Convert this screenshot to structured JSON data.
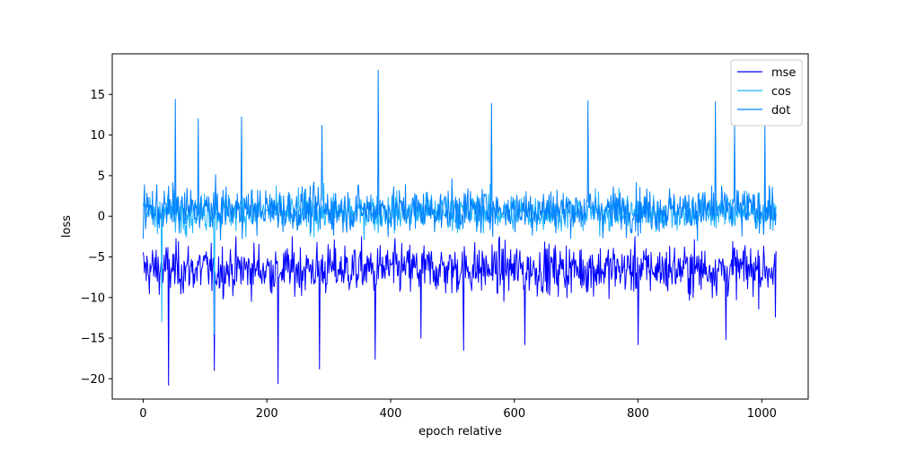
{
  "chart_data": {
    "type": "line",
    "title": "",
    "xlabel": "epoch relative",
    "ylabel": "loss",
    "xlim": [
      -50,
      1075
    ],
    "ylim": [
      -22.5,
      20
    ],
    "xticks": [
      0,
      200,
      400,
      600,
      800,
      1000
    ],
    "yticks": [
      -20,
      -15,
      -10,
      -5,
      0,
      5,
      10,
      15
    ],
    "xtick_labels": [
      "0",
      "200",
      "400",
      "600",
      "800",
      "1000"
    ],
    "ytick_labels": [
      "−20",
      "−15",
      "−10",
      "−5",
      "0",
      "5",
      "10",
      "15"
    ],
    "grid": false,
    "legend_position": "top-right",
    "n_points": 1024,
    "series": [
      {
        "name": "mse",
        "color": "#0000ff",
        "approx_center": -6.5,
        "approx_range": [
          -20.8,
          -0.5
        ],
        "spikes": [
          [
            41,
            -20.8
          ],
          [
            115,
            -19.0
          ],
          [
            218,
            -20.6
          ],
          [
            285,
            -18.8
          ],
          [
            375,
            -17.6
          ],
          [
            449,
            -15.0
          ],
          [
            518,
            -16.5
          ],
          [
            617,
            -15.8
          ],
          [
            800,
            -15.8
          ],
          [
            942,
            -15.2
          ],
          [
            1022,
            -12.4
          ]
        ]
      },
      {
        "name": "cos",
        "color": "#1eb4ff",
        "approx_center": 0.5,
        "approx_range": [
          -14.5,
          6.5
        ],
        "spikes": [
          [
            115,
            -14.5
          ],
          [
            30,
            -13.0
          ]
        ]
      },
      {
        "name": "dot",
        "color": "#0080ff",
        "approx_center": 0.8,
        "approx_range": [
          -7.0,
          18.0
        ],
        "spikes": [
          [
            52,
            14.4
          ],
          [
            89,
            12.0
          ],
          [
            159,
            12.2
          ],
          [
            289,
            11.2
          ],
          [
            380,
            18.0
          ],
          [
            563,
            13.9
          ],
          [
            719,
            14.2
          ],
          [
            925,
            14.1
          ],
          [
            956,
            11.3
          ],
          [
            1005,
            11.3
          ]
        ]
      }
    ]
  }
}
